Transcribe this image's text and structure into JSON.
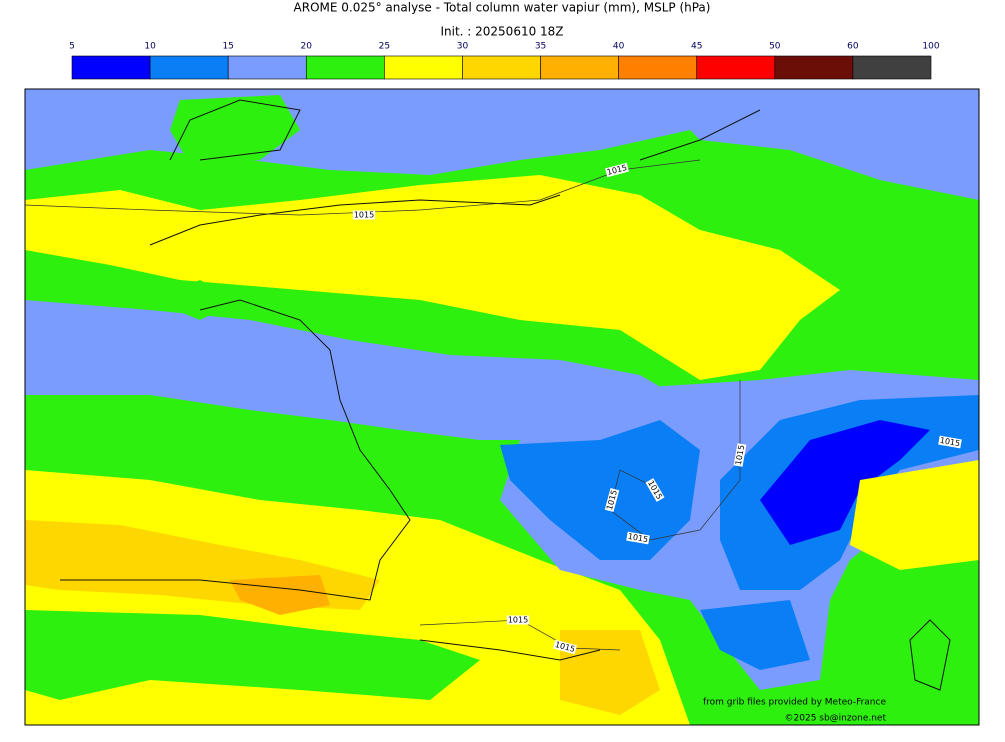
{
  "header": {
    "title": "AROME 0.025° analyse - Total column water vapiur (mm), MSLP (hPa)",
    "subtitle": "Init. : 20250610 18Z"
  },
  "colorbar": {
    "bounds": [
      5,
      10,
      15,
      20,
      25,
      30,
      35,
      40,
      45,
      50,
      60,
      100
    ],
    "colors": [
      "#0000ff",
      "#0a7ef5",
      "#7b9cff",
      "#2ef00e",
      "#ffff00",
      "#ffd700",
      "#ffb000",
      "#ff7f00",
      "#ff0000",
      "#6b0e08",
      "#404040"
    ]
  },
  "isobar_labels": [
    "1015",
    "1015",
    "1015",
    "1015",
    "1015",
    "1015",
    "1015",
    "1015",
    "1015"
  ],
  "credits": [
    "from grib files provided by Meteo-France",
    "©2025 sb@inzone.net"
  ]
}
